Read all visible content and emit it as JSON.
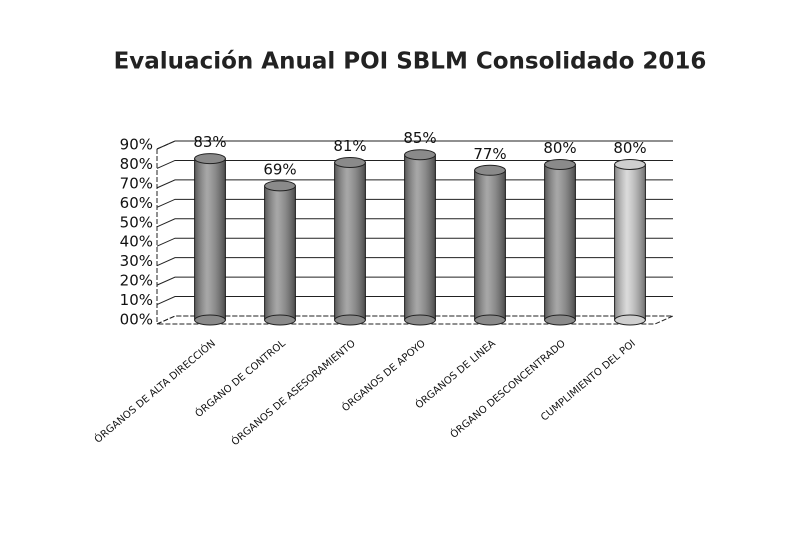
{
  "chart_data": {
    "type": "bar",
    "title": "Evaluación Anual POI SBLM Consolidado 2016",
    "categories": [
      "ÓRGANOS DE ALTA DIRECCIÓN",
      "ÓRGANO DE CONTROL",
      "ÓRGANOS DE ASESORAMIENTO",
      "ÓRGANOS DE APOYO",
      "ÓRGANOS DE LINEA",
      "ÓRGANO DESCONCENTRADO",
      "CUMPLIMIENTO DEL POI"
    ],
    "values": [
      83,
      69,
      81,
      85,
      77,
      80,
      80
    ],
    "value_labels": [
      "83%",
      "69%",
      "81%",
      "85%",
      "77%",
      "80%",
      "80%"
    ],
    "colors": [
      "#8a8a8a",
      "#8a8a8a",
      "#8a8a8a",
      "#8a8a8a",
      "#8a8a8a",
      "#8a8a8a",
      "#cfcfcf"
    ],
    "ylim": [
      0,
      90
    ],
    "yticks": [
      {
        "value": 0,
        "label": "00%"
      },
      {
        "value": 10,
        "label": "10%"
      },
      {
        "value": 20,
        "label": "20%"
      },
      {
        "value": 30,
        "label": "30%"
      },
      {
        "value": 40,
        "label": "40%"
      },
      {
        "value": 50,
        "label": "50%"
      },
      {
        "value": 60,
        "label": "60%"
      },
      {
        "value": 70,
        "label": "70%"
      },
      {
        "value": 80,
        "label": "80%"
      },
      {
        "value": 90,
        "label": "90%"
      }
    ],
    "grid": true
  }
}
